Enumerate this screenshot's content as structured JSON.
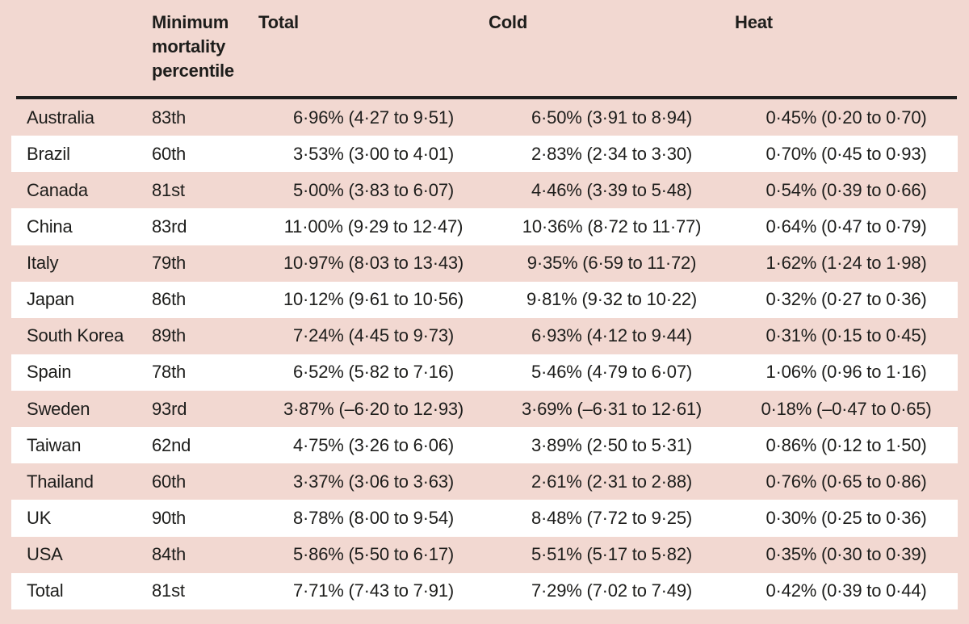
{
  "page": {
    "background_color": "#f2d8d1",
    "stripe_color": "#ffffff",
    "text_color": "#1d1d1b",
    "divider_color": "#1f1f1f"
  },
  "table": {
    "column_headers": {
      "country": "",
      "percentile": "Minimum mortality percentile",
      "total": "Total",
      "cold": "Cold",
      "heat": "Heat"
    },
    "rows": [
      {
        "country": "Australia",
        "percentile": "83th",
        "total": "6·96% (4·27 to 9·51)",
        "cold": "6·50% (3·91 to 8·94)",
        "heat": "0·45% (0·20 to 0·70)"
      },
      {
        "country": "Brazil",
        "percentile": "60th",
        "total": "3·53% (3·00 to 4·01)",
        "cold": "2·83% (2·34 to 3·30)",
        "heat": "0·70% (0·45 to 0·93)"
      },
      {
        "country": "Canada",
        "percentile": "81st",
        "total": "5·00% (3·83 to 6·07)",
        "cold": "4·46% (3·39 to 5·48)",
        "heat": "0·54% (0·39 to 0·66)"
      },
      {
        "country": "China",
        "percentile": "83rd",
        "total": "11·00% (9·29 to 12·47)",
        "cold": "10·36% (8·72 to 11·77)",
        "heat": "0·64% (0·47 to 0·79)"
      },
      {
        "country": "Italy",
        "percentile": "79th",
        "total": "10·97% (8·03 to 13·43)",
        "cold": "9·35% (6·59 to 11·72)",
        "heat": "1·62% (1·24 to 1·98)"
      },
      {
        "country": "Japan",
        "percentile": "86th",
        "total": "10·12% (9·61 to 10·56)",
        "cold": "9·81% (9·32 to 10·22)",
        "heat": "0·32% (0·27 to 0·36)"
      },
      {
        "country": "South Korea",
        "percentile": "89th",
        "total": "7·24% (4·45 to 9·73)",
        "cold": "6·93% (4·12 to 9·44)",
        "heat": "0·31% (0·15 to 0·45)"
      },
      {
        "country": "Spain",
        "percentile": "78th",
        "total": "6·52% (5·82 to 7·16)",
        "cold": "5·46% (4·79 to 6·07)",
        "heat": "1·06% (0·96 to 1·16)"
      },
      {
        "country": "Sweden",
        "percentile": "93rd",
        "total": "3·87% (–6·20 to 12·93)",
        "cold": "3·69% (–6·31 to 12·61)",
        "heat": "0·18% (–0·47 to 0·65)"
      },
      {
        "country": "Taiwan",
        "percentile": "62nd",
        "total": "4·75% (3·26 to 6·06)",
        "cold": "3·89% (2·50 to 5·31)",
        "heat": "0·86% (0·12 to 1·50)"
      },
      {
        "country": "Thailand",
        "percentile": "60th",
        "total": "3·37% (3·06 to 3·63)",
        "cold": "2·61% (2·31 to 2·88)",
        "heat": "0·76% (0·65 to 0·86)"
      },
      {
        "country": "UK",
        "percentile": "90th",
        "total": "8·78% (8·00 to 9·54)",
        "cold": "8·48% (7·72 to 9·25)",
        "heat": "0·30% (0·25 to 0·36)"
      },
      {
        "country": "USA",
        "percentile": "84th",
        "total": "5·86% (5·50 to 6·17)",
        "cold": "5·51% (5·17 to 5·82)",
        "heat": "0·35% (0·30 to 0·39)"
      },
      {
        "country": "Total",
        "percentile": "81st",
        "total": "7·71% (7·43 to 7·91)",
        "cold": "7·29% (7·02 to 7·49)",
        "heat": "0·42% (0·39 to 0·44)"
      }
    ]
  }
}
